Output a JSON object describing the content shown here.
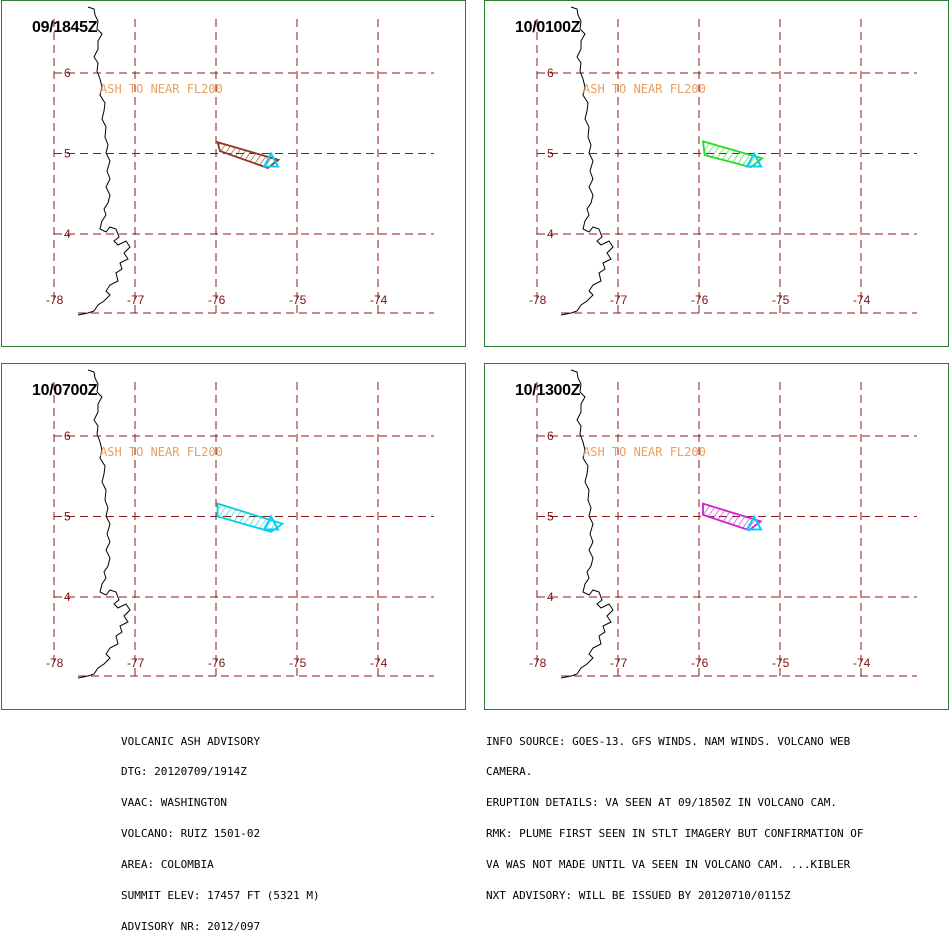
{
  "colors": {
    "grid": "#8b1a1a",
    "coast": "#000000",
    "ash_label": "#e8a060",
    "volcano_marker": "#00d0ff",
    "panel_border": "#2e7d32"
  },
  "lat_labels": [
    "6",
    "5",
    "4"
  ],
  "lon_labels": [
    "-78",
    "-77",
    "-76",
    "-75",
    "-74"
  ],
  "panels": [
    {
      "timestamp": "09/1845Z",
      "ash_label": "ASH TO NEAR FL200",
      "plume_color": "#8b3a1a",
      "plume": [
        [
          -75.98,
          5.14
        ],
        [
          -75.23,
          4.92
        ],
        [
          -75.36,
          4.82
        ],
        [
          -75.95,
          5.03
        ]
      ]
    },
    {
      "timestamp": "10/0100Z",
      "ash_label": "ASH TO NEAR FL200",
      "plume_color": "#22dd22",
      "plume": [
        [
          -75.95,
          5.15
        ],
        [
          -75.22,
          4.94
        ],
        [
          -75.36,
          4.83
        ],
        [
          -75.93,
          4.98
        ]
      ]
    },
    {
      "timestamp": "10/0700Z",
      "ash_label": "ASH TO NEAR FL200",
      "plume_color": "#00d0e0",
      "plume": [
        [
          -75.98,
          5.16
        ],
        [
          -75.18,
          4.91
        ],
        [
          -75.32,
          4.81
        ],
        [
          -75.98,
          5.0
        ]
      ]
    },
    {
      "timestamp": "10/1300Z",
      "ash_label": "ASH TO NEAR FL200",
      "plume_color": "#d020d0",
      "plume": [
        [
          -75.95,
          5.16
        ],
        [
          -75.24,
          4.94
        ],
        [
          -75.38,
          4.83
        ],
        [
          -75.95,
          5.02
        ]
      ]
    }
  ],
  "volcano": {
    "lon": -75.32,
    "lat": 4.9
  },
  "advisory_left": [
    "VOLCANIC ASH ADVISORY",
    "DTG: 20120709/1914Z",
    "VAAC: WASHINGTON",
    "VOLCANO: RUIZ 1501-02",
    "AREA: COLOMBIA",
    "SUMMIT ELEV: 17457 FT (5321 M)",
    "ADVISORY NR: 2012/097"
  ],
  "advisory_right": [
    "INFO SOURCE: GOES-13. GFS WINDS. NAM WINDS. VOLCANO WEB",
    "CAMERA.",
    "ERUPTION DETAILS: VA SEEN AT 09/1850Z IN VOLCANO CAM.",
    "RMK: PLUME FIRST SEEN IN STLT IMAGERY BUT CONFIRMATION OF",
    "VA WAS NOT MADE UNTIL VA SEEN IN VOLCANO CAM. ...KIBLER",
    "NXT ADVISORY: WILL BE ISSUED BY 20120710/0115Z"
  ]
}
